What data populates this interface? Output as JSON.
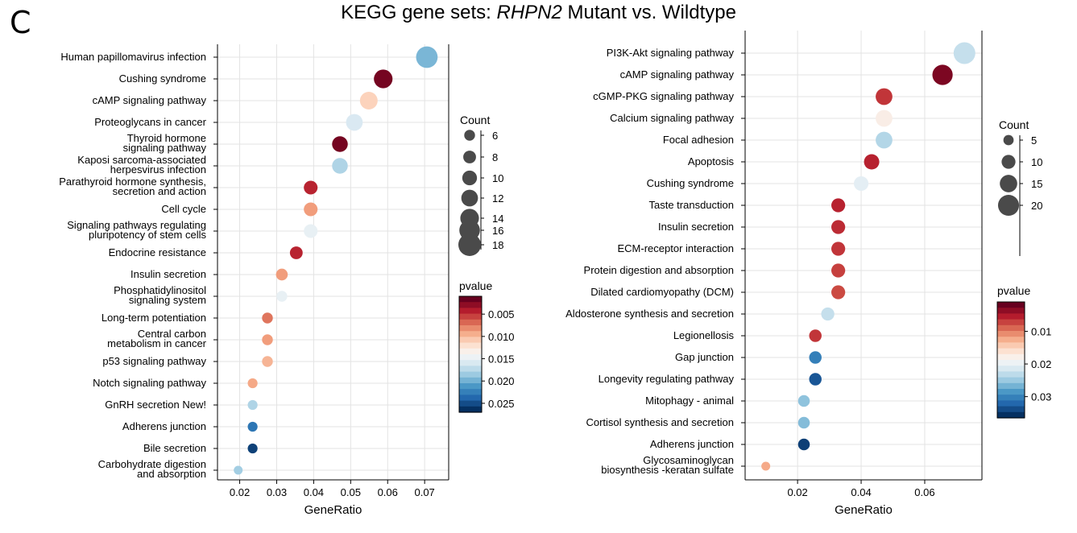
{
  "figure": {
    "panel_label": "C",
    "title_prefix": "KEGG gene sets: ",
    "title_gene": "RHPN2",
    "title_suffix": " Mutant vs. Wildtype"
  },
  "colors": {
    "scale": [
      "#67001f",
      "#b2182b",
      "#d6604d",
      "#f4a582",
      "#fddbc7",
      "#f7f7f7",
      "#d1e5f0",
      "#92c5de",
      "#4393c3",
      "#2166ac",
      "#053061"
    ],
    "dot_size_legend": "#4a4a4a",
    "grid": "#e3e3e3"
  },
  "chart_data": [
    {
      "type": "scatter",
      "name": "left-dotplot",
      "xlabel": "GeneRatio",
      "ylabel": "",
      "xlim": [
        0.014,
        0.0765
      ],
      "xticks": [
        "0.02",
        "0.03",
        "0.04",
        "0.05",
        "0.06",
        "0.07"
      ],
      "grid": true,
      "count_legend": {
        "title": "Count",
        "ticks": [
          6,
          8,
          10,
          12,
          14,
          16,
          18
        ]
      },
      "pvalue_legend": {
        "title": "pvalue",
        "range": [
          0.001,
          0.027
        ],
        "ticks": [
          "0.005",
          "0.010",
          "0.015",
          "0.020",
          "0.025"
        ]
      },
      "points": [
        {
          "label": "Human papillomavirus infection",
          "x": 0.0706,
          "count": 17,
          "pvalue": 0.02
        },
        {
          "label": "Cushing syndrome",
          "x": 0.0588,
          "count": 14,
          "pvalue": 0.0015
        },
        {
          "label": "cAMP signaling pathway",
          "x": 0.0549,
          "count": 13,
          "pvalue": 0.011
        },
        {
          "label": "Proteoglycans in cancer",
          "x": 0.051,
          "count": 12,
          "pvalue": 0.016
        },
        {
          "label": "Thyroid hormone signaling pathway",
          "x": 0.0471,
          "count": 11,
          "pvalue": 0.0015
        },
        {
          "label": "Kaposi sarcoma-associated herpesvirus infection",
          "x": 0.0471,
          "count": 11,
          "pvalue": 0.018
        },
        {
          "label": "Parathyroid hormone synthesis, secretion and action",
          "x": 0.0392,
          "count": 9,
          "pvalue": 0.004
        },
        {
          "label": "Cell cycle",
          "x": 0.0392,
          "count": 9,
          "pvalue": 0.0085
        },
        {
          "label": "Signaling pathways regulating pluripotency of stem cells",
          "x": 0.0392,
          "count": 9,
          "pvalue": 0.015
        },
        {
          "label": "Endocrine resistance",
          "x": 0.0353,
          "count": 8,
          "pvalue": 0.004
        },
        {
          "label": "Insulin secretion",
          "x": 0.0314,
          "count": 7,
          "pvalue": 0.0085
        },
        {
          "label": "Phosphatidylinositol signaling system",
          "x": 0.0314,
          "count": 6,
          "pvalue": 0.015
        },
        {
          "label": "Long-term potentiation",
          "x": 0.0275,
          "count": 6,
          "pvalue": 0.007
        },
        {
          "label": "Central carbon metabolism in cancer",
          "x": 0.0275,
          "count": 6,
          "pvalue": 0.0085
        },
        {
          "label": "p53 signaling pathway",
          "x": 0.0275,
          "count": 6,
          "pvalue": 0.0095
        },
        {
          "label": "Notch signaling pathway",
          "x": 0.0235,
          "count": 5,
          "pvalue": 0.009
        },
        {
          "label": "GnRH secretion New!",
          "x": 0.0235,
          "count": 5,
          "pvalue": 0.018
        },
        {
          "label": "Adherens junction",
          "x": 0.0235,
          "count": 5,
          "pvalue": 0.0235
        },
        {
          "label": "Bile secretion",
          "x": 0.0235,
          "count": 5,
          "pvalue": 0.0262
        },
        {
          "label": "Carbohydrate digestion and absorption",
          "x": 0.0196,
          "count": 4,
          "pvalue": 0.0185
        }
      ]
    },
    {
      "type": "scatter",
      "name": "right-dotplot",
      "xlabel": "GeneRatio",
      "ylabel": "",
      "xlim": [
        0.0035,
        0.078
      ],
      "xticks": [
        "0.02",
        "0.04",
        "0.06"
      ],
      "grid": true,
      "count_legend": {
        "title": "Count",
        "ticks": [
          5,
          10,
          15,
          20
        ]
      },
      "pvalue_legend": {
        "title": "pvalue",
        "range": [
          0.001,
          0.0365
        ],
        "ticks": [
          "0.01",
          "0.02",
          "0.03"
        ]
      },
      "points": [
        {
          "label": "PI3K-Akt signaling pathway",
          "x": 0.0725,
          "count": 21,
          "pvalue": 0.023
        },
        {
          "label": "cAMP signaling pathway",
          "x": 0.0656,
          "count": 19,
          "pvalue": 0.002
        },
        {
          "label": "cGMP-PKG signaling pathway",
          "x": 0.0472,
          "count": 14,
          "pvalue": 0.006
        },
        {
          "label": "Calcium signaling pathway",
          "x": 0.0472,
          "count": 14,
          "pvalue": 0.0175
        },
        {
          "label": "Focal adhesion",
          "x": 0.0472,
          "count": 14,
          "pvalue": 0.024
        },
        {
          "label": "Apoptosis",
          "x": 0.0433,
          "count": 12,
          "pvalue": 0.005
        },
        {
          "label": "Cushing syndrome",
          "x": 0.04,
          "count": 11,
          "pvalue": 0.0205
        },
        {
          "label": "Taste transduction",
          "x": 0.0328,
          "count": 10,
          "pvalue": 0.005
        },
        {
          "label": "Insulin secretion",
          "x": 0.0328,
          "count": 10,
          "pvalue": 0.0055
        },
        {
          "label": "ECM-receptor interaction",
          "x": 0.0328,
          "count": 10,
          "pvalue": 0.006
        },
        {
          "label": "Protein digestion and absorption",
          "x": 0.0328,
          "count": 10,
          "pvalue": 0.0065
        },
        {
          "label": "Dilated cardiomyopathy (DCM)",
          "x": 0.0328,
          "count": 10,
          "pvalue": 0.007
        },
        {
          "label": "Aldosterone synthesis and secretion",
          "x": 0.0295,
          "count": 9,
          "pvalue": 0.023
        },
        {
          "label": "Legionellosis",
          "x": 0.0256,
          "count": 8,
          "pvalue": 0.006
        },
        {
          "label": "Gap junction",
          "x": 0.0256,
          "count": 8,
          "pvalue": 0.031
        },
        {
          "label": "Longevity regulating pathway",
          "x": 0.0256,
          "count": 8,
          "pvalue": 0.034
        },
        {
          "label": "Mitophagy - animal",
          "x": 0.022,
          "count": 7,
          "pvalue": 0.026
        },
        {
          "label": "Cortisol synthesis and secretion",
          "x": 0.022,
          "count": 7,
          "pvalue": 0.0265
        },
        {
          "label": "Adherens junction",
          "x": 0.022,
          "count": 7,
          "pvalue": 0.0355
        },
        {
          "label": "Glycosaminoglycan biosynthesis -keratan sulfate",
          "x": 0.01,
          "count": 3,
          "pvalue": 0.012
        }
      ]
    }
  ]
}
